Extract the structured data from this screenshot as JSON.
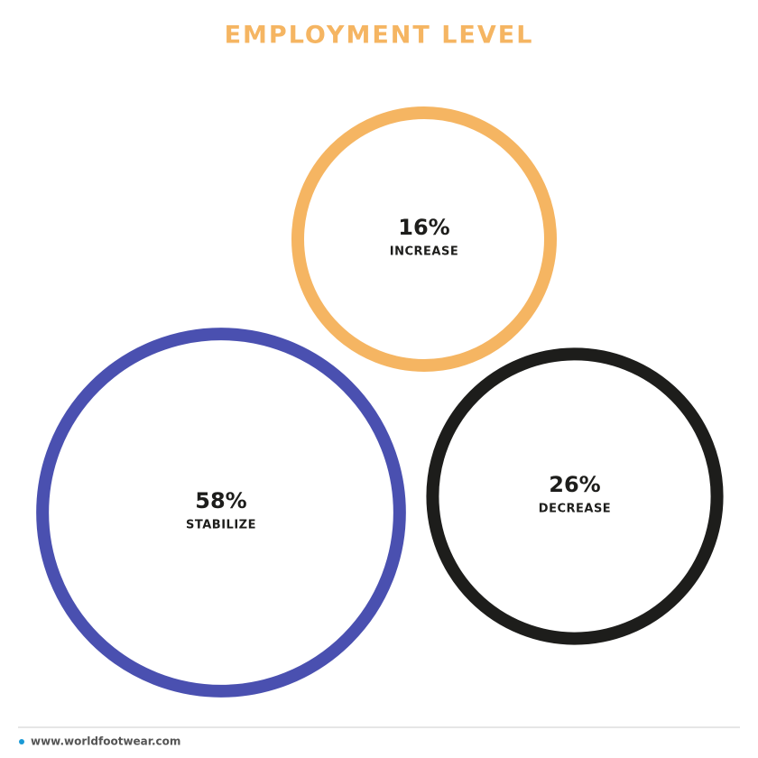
{
  "chart_data": {
    "type": "bubble",
    "title": "EMPLOYMENT LEVEL",
    "categories": [
      "INCREASE",
      "STABILIZE",
      "DECREASE"
    ],
    "values": [
      16,
      58,
      26
    ],
    "value_labels": [
      "16%",
      "58%",
      "26%"
    ],
    "colors": [
      "#f5b562",
      "#4a50b0",
      "#1d1d1b"
    ]
  },
  "footer": "www.worldfootwear.com"
}
